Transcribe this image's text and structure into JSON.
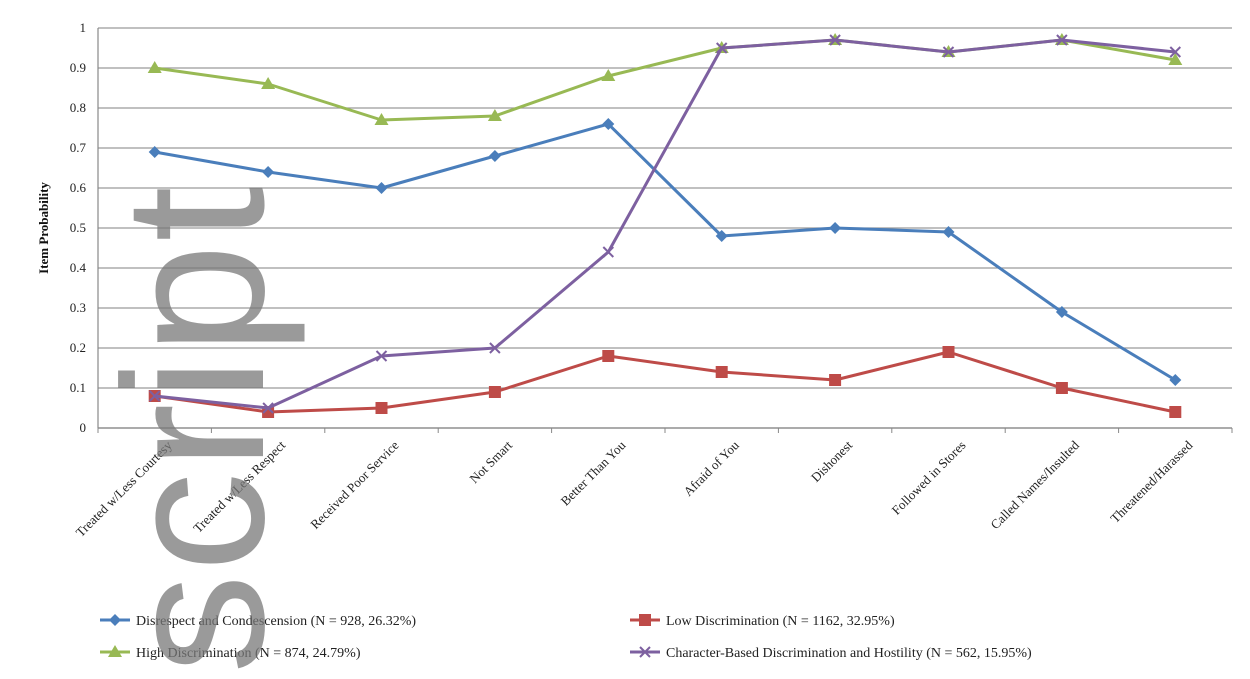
{
  "chart_data": {
    "type": "line",
    "title": "",
    "xlabel": "",
    "ylabel": "Item Probability",
    "ylim": [
      0,
      1
    ],
    "yticks": [
      "0",
      "0.1",
      "0.2",
      "0.3",
      "0.4",
      "0.5",
      "0.6",
      "0.7",
      "0.8",
      "0.9",
      "1"
    ],
    "grid": true,
    "legend_position": "bottom",
    "categories": [
      "Treated w/Less Courtesy",
      "Treated w/Less Respect",
      "Received Poor Service",
      "Not Smart",
      "Better Than You",
      "Afraid of You",
      "Dishonest",
      "Followed in Stores",
      "Called Names/Insulted",
      "Threatened/Harassed"
    ],
    "series": [
      {
        "name": "Disrespect and Condescension (N = 928, 26.32%)",
        "color": "#4a7ebb",
        "marker": "diamond",
        "values": [
          0.69,
          0.64,
          0.6,
          0.68,
          0.76,
          0.48,
          0.5,
          0.49,
          0.29,
          0.12
        ]
      },
      {
        "name": "Low Discrimination (N = 1162, 32.95%)",
        "color": "#be4b48",
        "marker": "square",
        "values": [
          0.08,
          0.04,
          0.05,
          0.09,
          0.18,
          0.14,
          0.12,
          0.19,
          0.1,
          0.04
        ]
      },
      {
        "name": "High Discrimination (N = 874, 24.79%)",
        "color": "#98b954",
        "marker": "triangle",
        "values": [
          0.9,
          0.86,
          0.77,
          0.78,
          0.88,
          0.95,
          0.97,
          0.94,
          0.97,
          0.92
        ]
      },
      {
        "name": "Character-Based Discrimination and Hostility (N = 562, 15.95%)",
        "color": "#7d60a0",
        "marker": "x",
        "values": [
          0.08,
          0.05,
          0.18,
          0.2,
          0.44,
          0.95,
          0.97,
          0.94,
          0.97,
          0.94
        ]
      }
    ]
  },
  "watermark_text": "script"
}
